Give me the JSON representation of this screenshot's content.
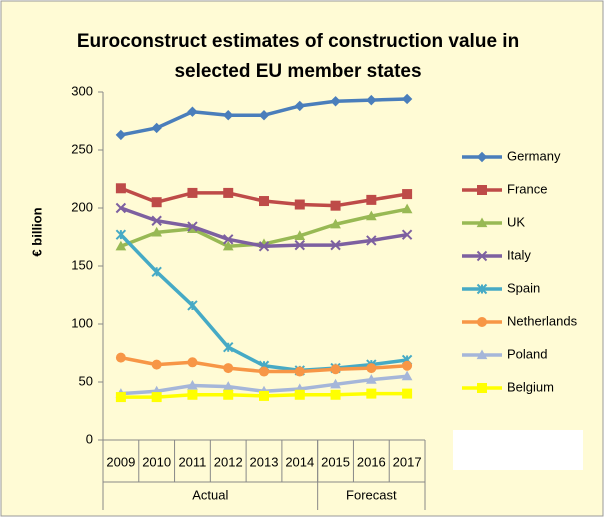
{
  "chart_data": {
    "type": "line",
    "title": [
      "Euroconstruct estimates of construction value in",
      "selected EU member states"
    ],
    "y_label": "€ billion",
    "categories": [
      "2009",
      "2010",
      "2011",
      "2012",
      "2013",
      "2014",
      "2015",
      "2016",
      "2017"
    ],
    "groups": [
      {
        "label": "Actual",
        "span": 6
      },
      {
        "label": "Forecast",
        "span": 3
      }
    ],
    "ylim": [
      0,
      300
    ],
    "yticks": [
      0,
      50,
      100,
      150,
      200,
      250,
      300
    ],
    "grid": false,
    "legend": "right",
    "series": [
      {
        "name": "Germany",
        "color": "#4a7ebb",
        "marker": "diamond",
        "values": [
          263,
          269,
          283,
          280,
          280,
          288,
          292,
          293,
          294
        ]
      },
      {
        "name": "France",
        "color": "#be4b48",
        "marker": "square",
        "values": [
          217,
          205,
          213,
          213,
          206,
          203,
          202,
          207,
          212
        ]
      },
      {
        "name": "UK",
        "color": "#98b954",
        "marker": "triangle",
        "values": [
          167,
          179,
          182,
          167,
          169,
          176,
          186,
          193,
          199
        ]
      },
      {
        "name": "Italy",
        "color": "#7d60a0",
        "marker": "cross",
        "values": [
          200,
          189,
          184,
          173,
          167,
          168,
          168,
          172,
          177
        ]
      },
      {
        "name": "Spain",
        "color": "#46aac5",
        "marker": "star",
        "values": [
          177,
          145,
          116,
          80,
          64,
          60,
          62,
          65,
          69
        ]
      },
      {
        "name": "Netherlands",
        "color": "#f79646",
        "marker": "circle",
        "values": [
          71,
          65,
          67,
          62,
          59,
          59,
          61,
          62,
          64
        ]
      },
      {
        "name": "Poland",
        "color": "#a5b6d9",
        "marker": "triangle",
        "values": [
          40,
          42,
          47,
          46,
          42,
          44,
          48,
          52,
          55
        ]
      },
      {
        "name": "Belgium",
        "color": "#ffff00",
        "marker": "square",
        "values": [
          37,
          37,
          39,
          39,
          38,
          39,
          39,
          40,
          40
        ]
      }
    ]
  }
}
